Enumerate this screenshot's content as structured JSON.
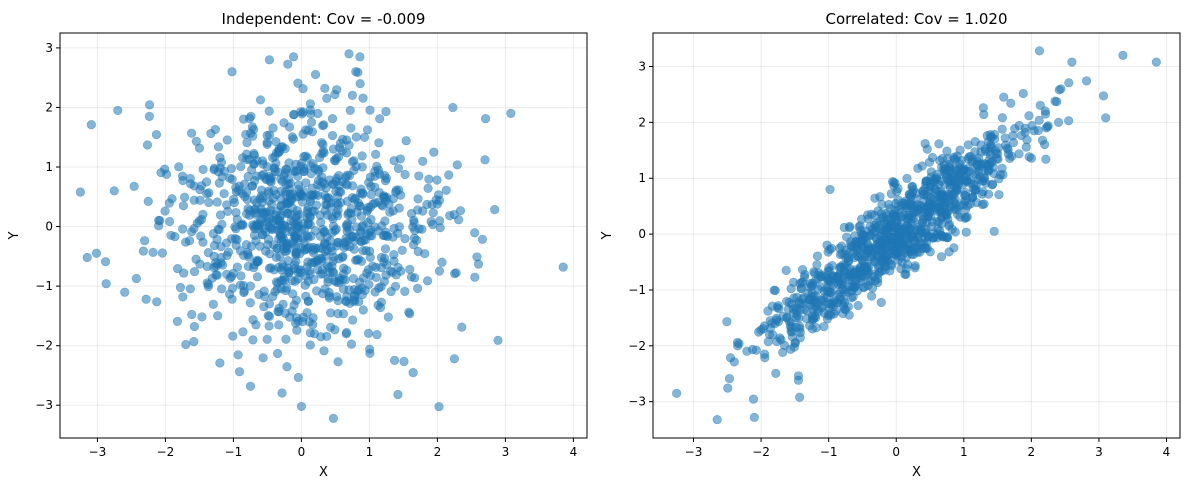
{
  "chart_data": [
    {
      "type": "scatter",
      "title": "Independent: Cov = -0.009",
      "xlabel": "X",
      "ylabel": "Y",
      "xlim": [
        -3.55,
        4.2
      ],
      "ylim": [
        -3.55,
        3.25
      ],
      "xticks": [
        -3,
        -2,
        -1,
        0,
        1,
        2,
        3,
        4
      ],
      "yticks": [
        -3,
        -2,
        -1,
        0,
        1,
        2,
        3
      ],
      "grid": true,
      "color": "#1f77b4",
      "alpha": 0.55,
      "series": [
        {
          "n_points": 1000,
          "notes_points": [
            [
              -3.25,
              0.58
            ],
            [
              3.85,
              -0.68
            ],
            [
              3.08,
              1.9
            ],
            [
              -2.7,
              1.95
            ],
            [
              0.7,
              2.9
            ],
            [
              0.47,
              -3.22
            ],
            [
              0.0,
              -3.02
            ],
            [
              -0.47,
              2.8
            ],
            [
              -1.02,
              2.6
            ],
            [
              2.7,
              1.12
            ],
            [
              2.25,
              -2.22
            ],
            [
              1.42,
              -2.82
            ],
            [
              2.55,
              -0.85
            ],
            [
              -1.7,
              -1.98
            ],
            [
              0.8,
              2.6
            ]
          ],
          "x_std": 1.0,
          "y_std": 1.0,
          "cov": -0.009
        }
      ]
    },
    {
      "type": "scatter",
      "title": "Correlated: Cov = 1.020",
      "xlabel": "X",
      "ylabel": "Y",
      "xlim": [
        -3.6,
        4.2
      ],
      "ylim": [
        -3.65,
        3.6
      ],
      "xticks": [
        -3,
        -2,
        -1,
        0,
        1,
        2,
        3,
        4
      ],
      "yticks": [
        -3,
        -2,
        -1,
        0,
        1,
        2,
        3
      ],
      "grid": true,
      "color": "#1f77b4",
      "alpha": 0.55,
      "series": [
        {
          "n_points": 1000,
          "notes_points": [
            [
              -3.25,
              -2.85
            ],
            [
              3.85,
              3.08
            ],
            [
              3.1,
              2.08
            ],
            [
              -2.65,
              -3.32
            ],
            [
              -2.1,
              -3.28
            ],
            [
              2.12,
              3.28
            ],
            [
              -1.43,
              -2.92
            ],
            [
              -0.98,
              0.8
            ],
            [
              1.45,
              0.05
            ],
            [
              2.6,
              3.08
            ]
          ],
          "x_std": 1.0,
          "y_std": 1.0,
          "cov": 1.02
        }
      ]
    }
  ]
}
